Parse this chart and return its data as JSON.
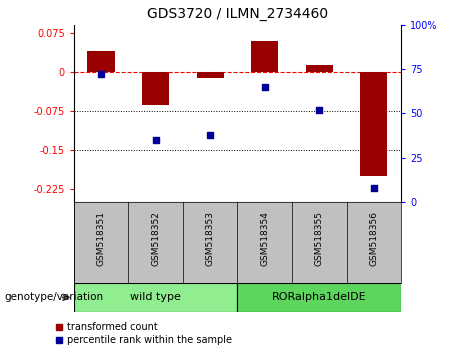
{
  "title": "GDS3720 / ILMN_2734460",
  "samples": [
    "GSM518351",
    "GSM518352",
    "GSM518353",
    "GSM518354",
    "GSM518355",
    "GSM518356"
  ],
  "bar_values": [
    0.04,
    -0.065,
    -0.012,
    0.058,
    0.012,
    -0.2
  ],
  "percentile_values": [
    72,
    35,
    38,
    65,
    52,
    8
  ],
  "groups": [
    {
      "label": "wild type",
      "indices": [
        0,
        1,
        2
      ],
      "color": "#90EE90"
    },
    {
      "label": "RORalpha1delDE",
      "indices": [
        3,
        4,
        5
      ],
      "color": "#5CD65C"
    }
  ],
  "bar_color": "#990000",
  "scatter_color": "#000099",
  "ylim_left": [
    -0.25,
    0.09
  ],
  "ylim_right": [
    0,
    100
  ],
  "yticks_left": [
    0.075,
    0,
    -0.075,
    -0.15,
    -0.225
  ],
  "yticks_right": [
    100,
    75,
    50,
    25,
    0
  ],
  "hline_y": 0,
  "dotted_lines": [
    -0.075,
    -0.15
  ],
  "bar_width": 0.5,
  "legend_items": [
    "transformed count",
    "percentile rank within the sample"
  ],
  "background_color": "#ffffff",
  "sample_area_color": "#c0c0c0",
  "genotype_label": "genotype/variation"
}
